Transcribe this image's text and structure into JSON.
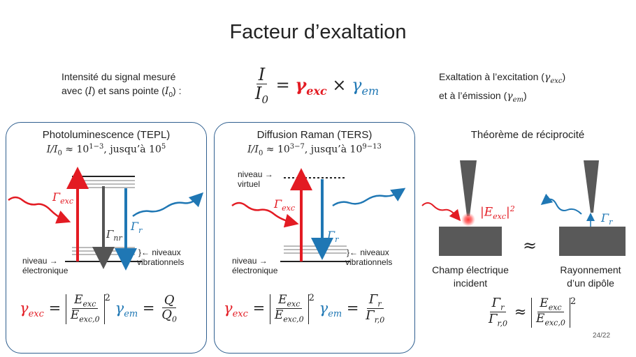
{
  "title": "Facteur d’exaltation",
  "intro": {
    "line1": "Intensité du signal mesuré",
    "line2_a": "avec (",
    "line2_I": "I",
    "line2_b": ") et sans pointe (",
    "line2_I0": "I",
    "line2_sub0": "0",
    "line2_c": ") :"
  },
  "main_formula": {
    "num": "I",
    "den": "I",
    "den_sub": "0",
    "eq": "=",
    "gamma_exc": "γ",
    "exc_sub": "exc",
    "times": "×",
    "gamma_em": "γ",
    "em_sub": "em"
  },
  "exaltation_text": {
    "line1_a": "Exaltation à l’excitation (",
    "line1_g": "γ",
    "line1_sub": "exc",
    "line1_b": ")",
    "line2_a": "et à l’émission (",
    "line2_g": "γ",
    "line2_sub": "em",
    "line2_b": ")"
  },
  "panel_pl": {
    "title": "Photoluminescence (TEPL)",
    "ratio_prefix": "I/I",
    "ratio_sub": "0",
    "approx": " ≈ 10",
    "exp1": "1−3",
    "mid": ", jusqu’à 10",
    "exp2": "5",
    "gamma_exc_label": "Γ",
    "gamma_exc_sub": "exc",
    "gamma_nr_label": "Γ",
    "gamma_nr_sub": "nr",
    "gamma_r_label": "Γ",
    "gamma_r_sub": "r",
    "niveaux": "}← niveaux",
    "vibrationnels": "vibrationnels",
    "niveau": "niveau  →",
    "electronique": "électronique"
  },
  "panel_raman": {
    "title": "Diffusion Raman (TERS)",
    "ratio_prefix": "I/I",
    "ratio_sub": "0",
    "approx": " ≈ 10",
    "exp1": "3−7",
    "mid": ", jusqu’à 10",
    "exp2": "9−13",
    "niveau_virtuel_a": "niveau →",
    "niveau_virtuel_b": "virtuel",
    "gamma_exc_label": "Γ",
    "gamma_exc_sub": "exc",
    "gamma_r_label": "Γ",
    "gamma_r_sub": "r",
    "niveaux": "}← niveaux",
    "vibrationnels": "vibrationnels",
    "niveau": "niveau  →",
    "electronique": "électronique"
  },
  "reciprocity": {
    "title": "Théorème de réciprocité",
    "field_label": "|E",
    "field_sub": "exc",
    "field_end": "|",
    "field_sup": "2",
    "gamma_r": "Γ",
    "gamma_r_sub": "r",
    "approx": "≈",
    "left_caption_1": "Champ électrique",
    "left_caption_2": "incident",
    "right_caption_1": "Rayonnement",
    "right_caption_2": "d’un dipôle"
  },
  "formulas": {
    "gamma": "γ",
    "exc": "exc",
    "em": "em",
    "eq": "=",
    "E": "E",
    "exc0": "exc,0",
    "sq": "2",
    "Q": "Q",
    "Q0": "Q",
    "Q0_sub": "0",
    "Gamma": "Γ",
    "r": "r",
    "r0": "r,0",
    "approx": "≈"
  },
  "page_number": "24/22",
  "colors": {
    "red": "#e31b23",
    "blue": "#1f77b4",
    "gray": "#555555",
    "box_border": "#2f5f8f"
  }
}
